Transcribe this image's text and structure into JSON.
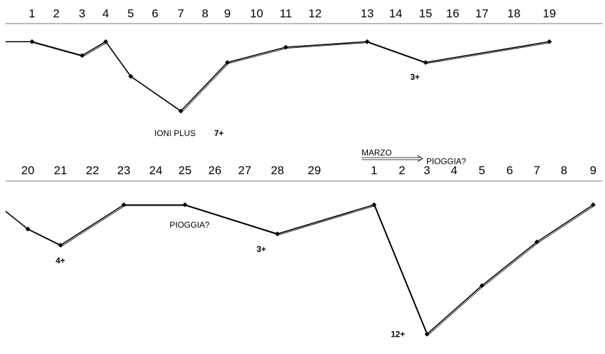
{
  "chart_data": {
    "type": "line",
    "panels": [
      {
        "ticks": [
          "1",
          "2",
          "3",
          "4",
          "5",
          "6",
          "7",
          "8",
          "9",
          "10",
          "11",
          "12",
          "13",
          "14",
          "15",
          "16",
          "17",
          "18",
          "19"
        ],
        "points": [
          {
            "x": "1",
            "y": 0
          },
          {
            "x": "3",
            "y": -1
          },
          {
            "x": "4",
            "y": 0
          },
          {
            "x": "5",
            "y": -2.5
          },
          {
            "x": "7",
            "y": -5
          },
          {
            "x": "9",
            "y": -1.5
          },
          {
            "x": "11",
            "y": -0.4
          },
          {
            "x": "13",
            "y": 0
          },
          {
            "x": "15",
            "y": -1.5
          },
          {
            "x": "19",
            "y": 0
          }
        ],
        "annotations": [
          {
            "text": "3+",
            "bold": true,
            "at": "15"
          },
          {
            "label": "IONI PLUS",
            "text": "7+",
            "bold": true,
            "at": "7"
          }
        ]
      },
      {
        "ticks": [
          "20",
          "21",
          "22",
          "23",
          "24",
          "25",
          "26",
          "27",
          "28",
          "29",
          "1",
          "2",
          "3",
          "4",
          "5",
          "6",
          "7",
          "8",
          "9"
        ],
        "month_label": "MARZO",
        "month_at": "1",
        "points": [
          {
            "x": "20",
            "y": -1.5
          },
          {
            "x": "21",
            "y": -2.5
          },
          {
            "x": "23",
            "y": 0
          },
          {
            "x": "25",
            "y": 0
          },
          {
            "x": "28",
            "y": -1.8
          },
          {
            "x": "1",
            "y": 0
          },
          {
            "x": "3",
            "y": -8
          },
          {
            "x": "5",
            "y": -5
          },
          {
            "x": "7",
            "y": -2.3
          },
          {
            "x": "9",
            "y": 0
          }
        ],
        "annotations": [
          {
            "text": "4+",
            "bold": true,
            "at": "21"
          },
          {
            "text": "PIOGGIA?",
            "bold": false,
            "at": "24"
          },
          {
            "text": "3+",
            "bold": true,
            "at": "28"
          },
          {
            "text": "PIOGGIA?",
            "bold": false,
            "at": "5"
          },
          {
            "text": "12+",
            "bold": true,
            "at": "3"
          }
        ]
      }
    ]
  }
}
